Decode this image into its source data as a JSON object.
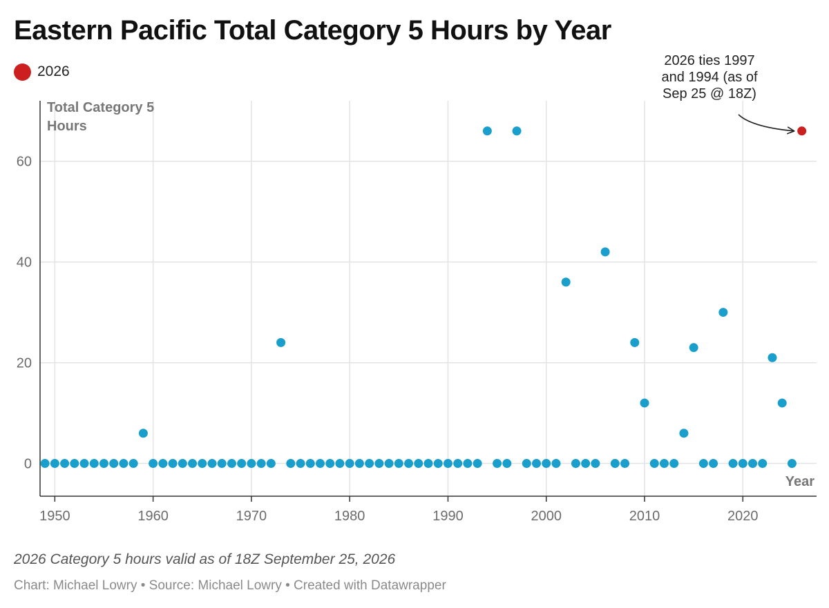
{
  "colors": {
    "base": "#1a9ecb",
    "highlight": "#cc1f1f",
    "grid": "#e3e3e3",
    "axis": "#333333"
  },
  "legend": {
    "label": "2026",
    "icon": "red-dot-icon"
  },
  "notes": "2026 Category 5 hours valid as of 18Z September 25, 2026",
  "credits": "Chart: Michael Lowry • Source: Michael Lowry • Created with Datawrapper",
  "chart_data": {
    "type": "scatter",
    "title": "Eastern Pacific Total Category 5 Hours by Year",
    "xlabel": "Year",
    "ylabel": [
      "Total Category 5",
      "Hours"
    ],
    "xlim": [
      1948.5,
      2027.5
    ],
    "ylim": [
      -6.5,
      72
    ],
    "x_ticks": [
      1950,
      1960,
      1970,
      1980,
      1990,
      2000,
      2010,
      2020
    ],
    "y_ticks": [
      0,
      20,
      40,
      60
    ],
    "grid": true,
    "legend_position": "top-left",
    "series": [
      {
        "points": [
          [
            1949,
            0
          ],
          [
            1950,
            0
          ],
          [
            1951,
            0
          ],
          [
            1952,
            0
          ],
          [
            1953,
            0
          ],
          [
            1954,
            0
          ],
          [
            1955,
            0
          ],
          [
            1956,
            0
          ],
          [
            1957,
            0
          ],
          [
            1958,
            0
          ],
          [
            1959,
            6
          ],
          [
            1960,
            0
          ],
          [
            1961,
            0
          ],
          [
            1962,
            0
          ],
          [
            1963,
            0
          ],
          [
            1964,
            0
          ],
          [
            1965,
            0
          ],
          [
            1966,
            0
          ],
          [
            1967,
            0
          ],
          [
            1968,
            0
          ],
          [
            1969,
            0
          ],
          [
            1970,
            0
          ],
          [
            1971,
            0
          ],
          [
            1972,
            0
          ],
          [
            1973,
            24
          ],
          [
            1974,
            0
          ],
          [
            1975,
            0
          ],
          [
            1976,
            0
          ],
          [
            1977,
            0
          ],
          [
            1978,
            0
          ],
          [
            1979,
            0
          ],
          [
            1980,
            0
          ],
          [
            1981,
            0
          ],
          [
            1982,
            0
          ],
          [
            1983,
            0
          ],
          [
            1984,
            0
          ],
          [
            1985,
            0
          ],
          [
            1986,
            0
          ],
          [
            1987,
            0
          ],
          [
            1988,
            0
          ],
          [
            1989,
            0
          ],
          [
            1990,
            0
          ],
          [
            1991,
            0
          ],
          [
            1992,
            0
          ],
          [
            1993,
            0
          ],
          [
            1994,
            66
          ],
          [
            1995,
            0
          ],
          [
            1996,
            0
          ],
          [
            1997,
            66
          ],
          [
            1998,
            0
          ],
          [
            1999,
            0
          ],
          [
            2000,
            0
          ],
          [
            2001,
            0
          ],
          [
            2002,
            36
          ],
          [
            2003,
            0
          ],
          [
            2004,
            0
          ],
          [
            2005,
            0
          ],
          [
            2006,
            42
          ],
          [
            2007,
            0
          ],
          [
            2008,
            0
          ],
          [
            2009,
            24
          ],
          [
            2010,
            12
          ],
          [
            2011,
            0
          ],
          [
            2012,
            0
          ],
          [
            2013,
            0
          ],
          [
            2014,
            6
          ],
          [
            2015,
            23
          ],
          [
            2016,
            0
          ],
          [
            2017,
            0
          ],
          [
            2018,
            30
          ],
          [
            2019,
            0
          ],
          [
            2020,
            0
          ],
          [
            2021,
            0
          ],
          [
            2022,
            0
          ],
          [
            2023,
            21
          ],
          [
            2024,
            12
          ],
          [
            2025,
            0
          ]
        ]
      },
      {
        "name": "2026",
        "points": [
          [
            2026,
            66
          ]
        ]
      }
    ],
    "annotation": {
      "lines": [
        "2026 ties 1997",
        "and 1994 (as of",
        "Sep 25 @ 18Z)"
      ],
      "target": [
        2026,
        66
      ]
    }
  }
}
